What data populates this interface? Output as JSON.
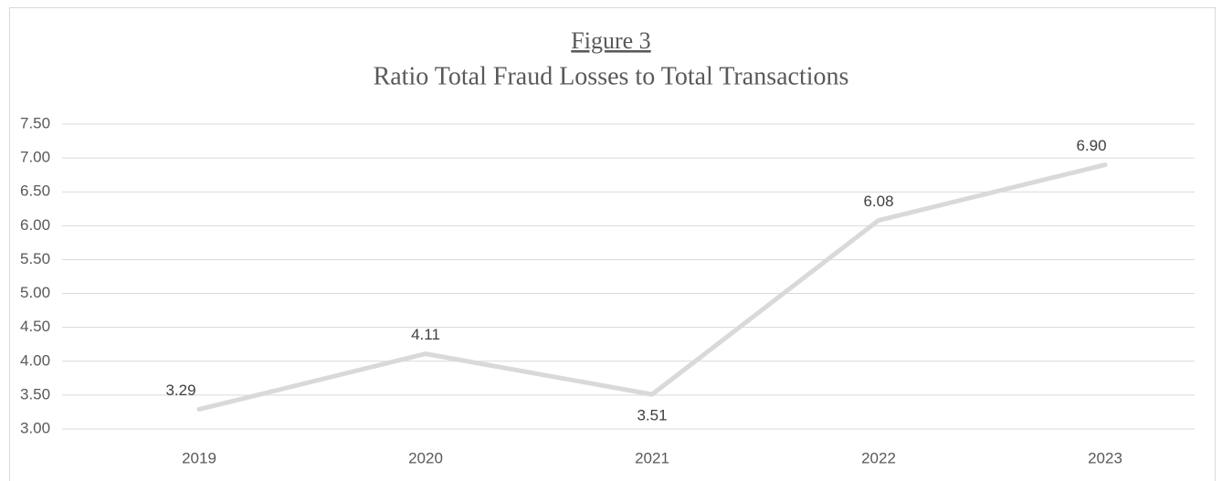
{
  "chart_data": {
    "type": "line",
    "title": "Figure 3",
    "subtitle": "Ratio Total Fraud Losses to Total Transactions",
    "categories": [
      "2019",
      "2020",
      "2021",
      "2022",
      "2023"
    ],
    "series": [
      {
        "name": "Ratio",
        "color": "#d9d9d9",
        "values": [
          3.29,
          4.11,
          3.51,
          6.08,
          6.9
        ],
        "value_labels": [
          "3.29",
          "4.11",
          "3.51",
          "6.08",
          "6.90"
        ]
      }
    ],
    "ylim": [
      3,
      7.5
    ],
    "yticks": [
      {
        "value": 3,
        "label": "3.00"
      },
      {
        "value": 3.5,
        "label": "3.50"
      },
      {
        "value": 4,
        "label": "4.00"
      },
      {
        "value": 4.5,
        "label": "4.50"
      },
      {
        "value": 5,
        "label": "5.00"
      },
      {
        "value": 5.5,
        "label": "5.50"
      },
      {
        "value": 6,
        "label": "6.00"
      },
      {
        "value": 6.5,
        "label": "6.50"
      },
      {
        "value": 7,
        "label": "7.00"
      },
      {
        "value": 7.5,
        "label": "7.50"
      }
    ],
    "grid": true
  }
}
